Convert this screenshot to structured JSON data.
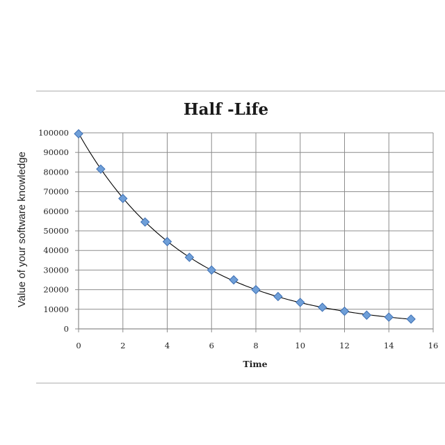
{
  "chart_data": {
    "type": "scatter",
    "title": "Half -Life",
    "xlabel": "Time",
    "ylabel": "Value of your software knowledge",
    "xlim": [
      0,
      16
    ],
    "ylim": [
      0,
      100000
    ],
    "x_ticks": [
      0,
      2,
      4,
      6,
      8,
      10,
      12,
      14,
      16
    ],
    "y_ticks": [
      0,
      10000,
      20000,
      30000,
      40000,
      50000,
      60000,
      70000,
      80000,
      90000,
      100000
    ],
    "grid": true,
    "legend": "none",
    "trendline": "exponential",
    "series": [
      {
        "marker": "diamond",
        "color": "#6f9fd8",
        "x": [
          0,
          1,
          2,
          3,
          4,
          5,
          6,
          7,
          8,
          9,
          10,
          11,
          12,
          13,
          14,
          15
        ],
        "y": [
          99500,
          81500,
          66500,
          54500,
          44500,
          36500,
          30000,
          25000,
          20000,
          16500,
          13500,
          11000,
          9000,
          7000,
          6000,
          5000
        ]
      }
    ]
  },
  "colors": {
    "grid": "#8c8c8c",
    "trendline": "#000000",
    "marker_fill": "#6f9fd8",
    "marker_stroke": "#3d6fb3",
    "rule": "#aaaaaa"
  }
}
